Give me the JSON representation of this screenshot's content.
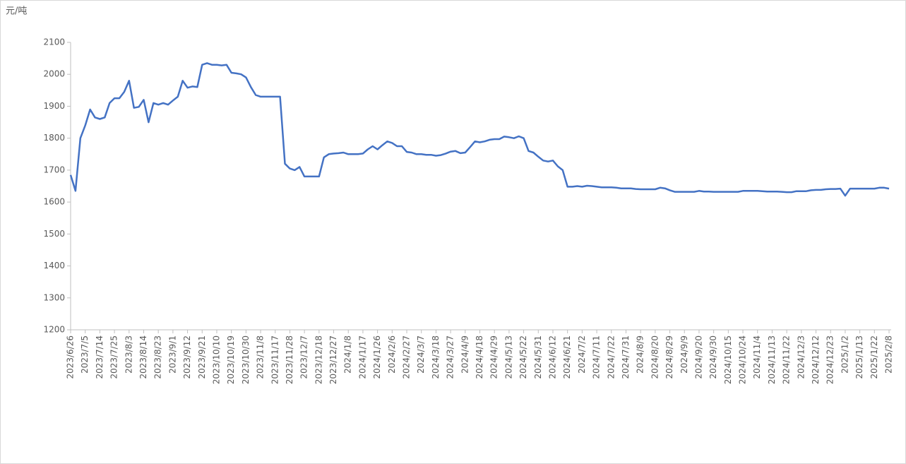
{
  "chart_data": {
    "type": "line",
    "y_unit": "元/吨",
    "color": "#4472c4",
    "categories": [
      "2023/6/26",
      null,
      null,
      "2023/7/5",
      null,
      null,
      "2023/7/14",
      null,
      null,
      "2023/7/25",
      null,
      null,
      "2023/8/3",
      null,
      null,
      "2023/8/14",
      null,
      null,
      "2023/8/23",
      null,
      null,
      "2023/9/1",
      null,
      null,
      "2023/9/12",
      null,
      null,
      "2023/9/21",
      null,
      null,
      "2023/10/10",
      null,
      null,
      "2023/10/19",
      null,
      null,
      "2023/10/30",
      null,
      null,
      "2023/11/8",
      null,
      null,
      "2023/11/17",
      null,
      null,
      "2023/11/28",
      null,
      null,
      "2023/12/7",
      null,
      null,
      "2023/12/18",
      null,
      null,
      "2023/12/27",
      null,
      null,
      "2024/1/8",
      null,
      null,
      "2024/1/17",
      null,
      null,
      "2024/1/26",
      null,
      null,
      "2024/2/6",
      null,
      null,
      "2024/2/27",
      null,
      null,
      "2024/3/7",
      null,
      null,
      "2024/3/18",
      null,
      null,
      "2024/3/27",
      null,
      null,
      "2024/4/9",
      null,
      null,
      "2024/4/18",
      null,
      null,
      "2024/4/29",
      null,
      null,
      "2024/5/13",
      null,
      null,
      "2024/5/22",
      null,
      null,
      "2024/5/31",
      null,
      null,
      "2024/6/12",
      null,
      null,
      "2024/6/21",
      null,
      null,
      "2024/7/2",
      null,
      null,
      "2024/7/11",
      null,
      null,
      "2024/7/22",
      null,
      null,
      "2024/7/31",
      null,
      null,
      "2024/8/9",
      null,
      null,
      "2024/8/20",
      null,
      null,
      "2024/8/29",
      null,
      null,
      "2024/9/9",
      null,
      null,
      "2024/9/20",
      null,
      null,
      "2024/9/30",
      null,
      null,
      "2024/10/15",
      null,
      null,
      "2024/10/24",
      null,
      null,
      "2024/11/4",
      null,
      null,
      "2024/11/13",
      null,
      null,
      "2024/11/22",
      null,
      null,
      "2024/12/3",
      null,
      null,
      "2024/12/12",
      null,
      null,
      "2024/12/23",
      null,
      null,
      "2025/1/2",
      null,
      null,
      "2025/1/13",
      null,
      null,
      "2025/1/22",
      null,
      null,
      "2025/2/8"
    ],
    "values": [
      1685,
      1635,
      1800,
      1840,
      1890,
      1865,
      1860,
      1865,
      1910,
      1925,
      1925,
      1945,
      1980,
      1895,
      1898,
      1920,
      1850,
      1910,
      1905,
      1910,
      1905,
      1918,
      1930,
      1980,
      1958,
      1962,
      1960,
      2030,
      2035,
      2030,
      2030,
      2028,
      2030,
      2005,
      2003,
      2000,
      1990,
      1960,
      1935,
      1930,
      1930,
      1930,
      1930,
      1930,
      1720,
      1705,
      1700,
      1710,
      1680,
      1680,
      1680,
      1680,
      1740,
      1750,
      1752,
      1753,
      1755,
      1750,
      1750,
      1750,
      1752,
      1765,
      1775,
      1765,
      1778,
      1790,
      1785,
      1775,
      1775,
      1757,
      1755,
      1750,
      1750,
      1748,
      1748,
      1745,
      1747,
      1752,
      1758,
      1760,
      1753,
      1755,
      1772,
      1790,
      1787,
      1790,
      1795,
      1797,
      1797,
      1805,
      1803,
      1800,
      1806,
      1800,
      1760,
      1755,
      1742,
      1730,
      1727,
      1730,
      1712,
      1700,
      1648,
      1648,
      1650,
      1648,
      1651,
      1650,
      1648,
      1646,
      1646,
      1646,
      1645,
      1643,
      1643,
      1643,
      1641,
      1640,
      1640,
      1640,
      1640,
      1645,
      1643,
      1637,
      1632,
      1632,
      1632,
      1632,
      1632,
      1635,
      1633,
      1633,
      1632,
      1632,
      1632,
      1632,
      1632,
      1632,
      1635,
      1635,
      1635,
      1635,
      1634,
      1633,
      1633,
      1633,
      1632,
      1631,
      1631,
      1634,
      1634,
      1634,
      1637,
      1638,
      1638,
      1640,
      1641,
      1641,
      1642,
      1620,
      1642,
      1642,
      1642,
      1642,
      1642,
      1642,
      1645,
      1645,
      1642
    ],
    "ylim": [
      1200,
      2100
    ],
    "yticks": [
      1200,
      1300,
      1400,
      1500,
      1600,
      1700,
      1800,
      1900,
      2000,
      2100
    ]
  }
}
